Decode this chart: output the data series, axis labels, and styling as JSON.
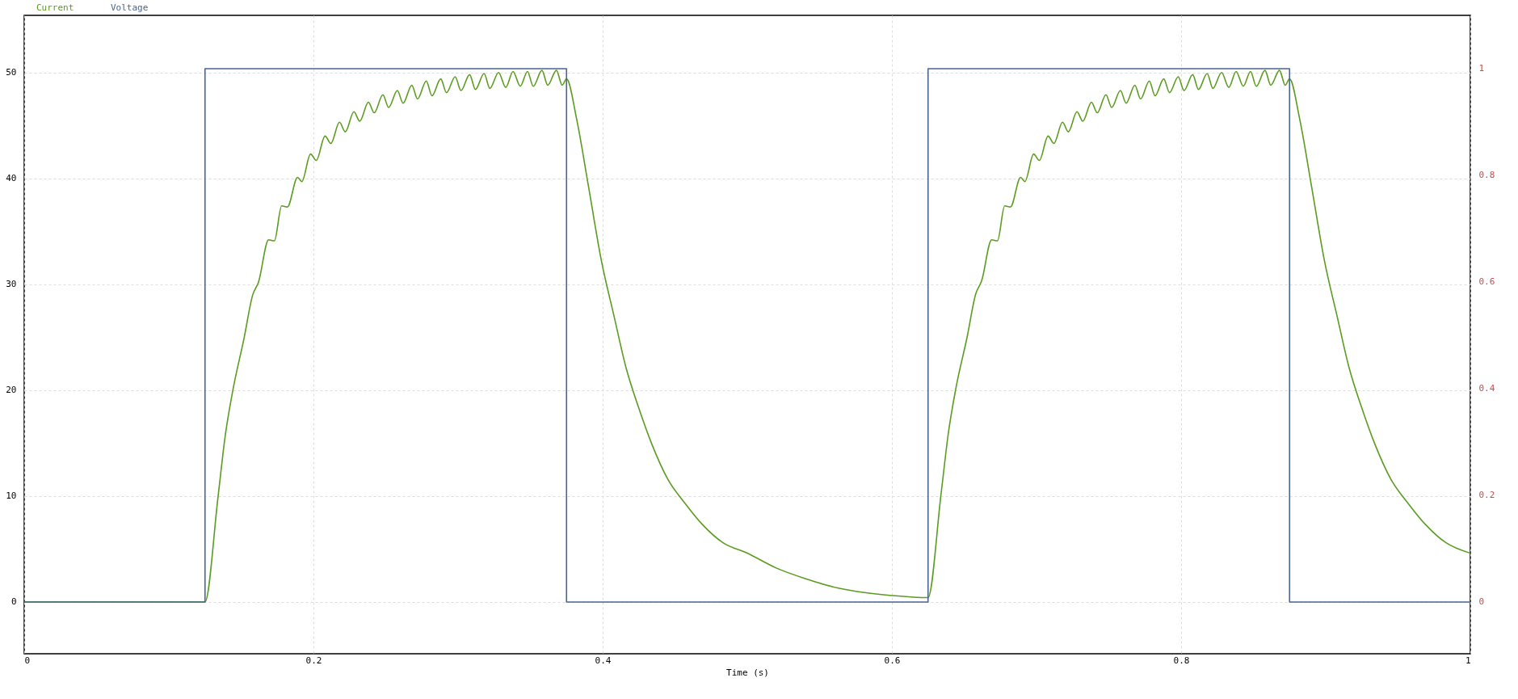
{
  "chart_data": {
    "type": "line",
    "xlabel": "Time (s)",
    "xlim": [
      0,
      1
    ],
    "xticks": [
      0,
      0.2,
      0.4,
      0.6,
      0.8,
      1
    ],
    "ylim": [
      -4.9,
      55.4
    ],
    "yticks": [
      0,
      10,
      20,
      30,
      40,
      50
    ],
    "y2lim": [
      -0.097,
      1.1
    ],
    "y2ticks": [
      0,
      0.2,
      0.4,
      0.6,
      0.8,
      1
    ],
    "grid": true,
    "legend": "top left",
    "series": [
      {
        "name": "Current",
        "color": "#5b9b1f",
        "x": [
          0,
          0.125,
          0.134,
          0.139,
          0.144,
          0.152,
          0.158,
          0.162,
          0.169,
          0.173,
          0.178,
          0.182,
          0.189,
          0.192,
          0.198,
          0.202,
          0.208,
          0.212,
          0.218,
          0.222,
          0.228,
          0.232,
          0.238,
          0.242,
          0.248,
          0.252,
          0.258,
          0.262,
          0.268,
          0.272,
          0.278,
          0.282,
          0.288,
          0.292,
          0.298,
          0.302,
          0.308,
          0.312,
          0.318,
          0.322,
          0.328,
          0.333,
          0.338,
          0.343,
          0.348,
          0.352,
          0.358,
          0.362,
          0.368,
          0.372,
          0.375,
          0.382,
          0.39,
          0.399,
          0.408,
          0.416,
          0.425,
          0.434,
          0.445,
          0.457,
          0.469,
          0.483,
          0.5,
          0.52,
          0.54,
          0.563,
          0.58,
          0.6,
          0.625,
          0.634,
          0.639,
          0.644,
          0.652,
          0.658,
          0.662,
          0.669,
          0.673,
          0.678,
          0.682,
          0.689,
          0.692,
          0.698,
          0.702,
          0.708,
          0.712,
          0.718,
          0.722,
          0.728,
          0.732,
          0.738,
          0.742,
          0.748,
          0.752,
          0.758,
          0.762,
          0.768,
          0.772,
          0.778,
          0.782,
          0.788,
          0.792,
          0.798,
          0.802,
          0.808,
          0.812,
          0.818,
          0.822,
          0.828,
          0.833,
          0.838,
          0.843,
          0.848,
          0.852,
          0.858,
          0.862,
          0.868,
          0.872,
          0.875,
          0.882,
          0.89,
          0.899,
          0.908,
          0.916,
          0.925,
          0.934,
          0.945,
          0.957,
          0.969,
          0.983,
          1
        ],
        "values": [
          0,
          0,
          9.9,
          15.7,
          19.8,
          24.9,
          29.0,
          30.2,
          34.2,
          34.1,
          37.4,
          37.3,
          40.1,
          39.7,
          42.3,
          41.7,
          44.0,
          43.3,
          45.3,
          44.4,
          46.3,
          45.4,
          47.2,
          46.2,
          47.9,
          46.7,
          48.3,
          47.1,
          48.8,
          47.5,
          49.2,
          47.8,
          49.4,
          48.1,
          49.6,
          48.3,
          49.8,
          48.4,
          49.9,
          48.5,
          50.0,
          48.6,
          50.1,
          48.7,
          50.1,
          48.7,
          50.2,
          48.8,
          50.2,
          48.8,
          49.4,
          45.6,
          39.4,
          32.3,
          26.9,
          22.2,
          18.3,
          14.9,
          11.6,
          9.3,
          7.3,
          5.6,
          4.6,
          3.2,
          2.2,
          1.3,
          0.9,
          0.6,
          0.4,
          10.2,
          15.9,
          20.0,
          25.0,
          29.1,
          30.3,
          34.2,
          34.1,
          37.4,
          37.3,
          40.1,
          39.7,
          42.3,
          41.7,
          44.0,
          43.3,
          45.3,
          44.4,
          46.3,
          45.4,
          47.2,
          46.2,
          47.9,
          46.7,
          48.3,
          47.1,
          48.8,
          47.5,
          49.2,
          47.8,
          49.4,
          48.1,
          49.6,
          48.3,
          49.8,
          48.4,
          49.9,
          48.5,
          50.0,
          48.6,
          50.1,
          48.7,
          50.1,
          48.7,
          50.2,
          48.8,
          50.2,
          48.8,
          49.4,
          45.6,
          39.4,
          32.3,
          26.9,
          22.2,
          18.3,
          14.9,
          11.6,
          9.3,
          7.3,
          5.6,
          4.6
        ]
      },
      {
        "name": "Voltage",
        "type": "step",
        "axis": "y2",
        "color": "#4a6590",
        "x": [
          0,
          0.125,
          0.375,
          0.625,
          0.875,
          1
        ],
        "values": [
          0,
          1,
          0,
          1,
          0,
          0
        ]
      }
    ]
  }
}
